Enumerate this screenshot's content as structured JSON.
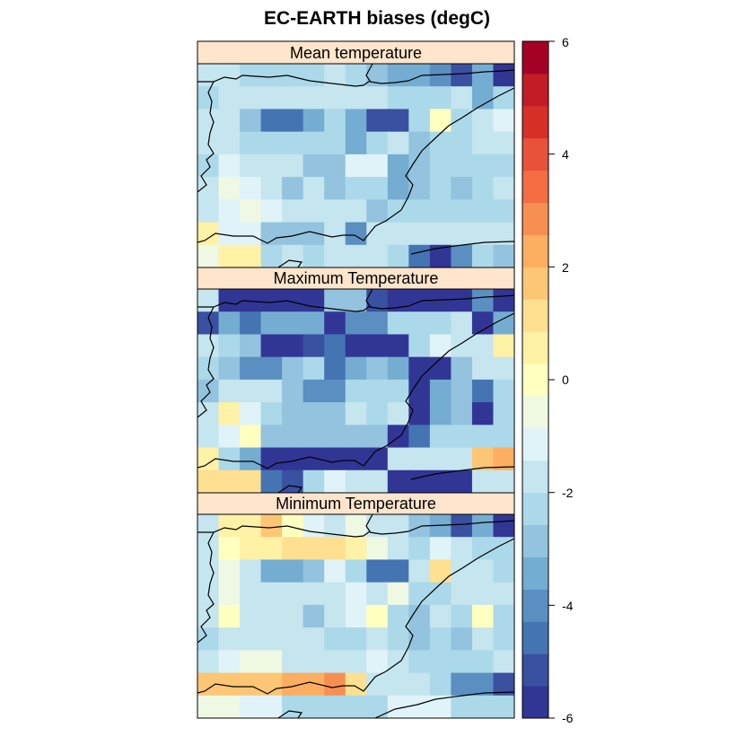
{
  "chart_data": {
    "type": "heatmap",
    "title": "EC-EARTH biases (degC)",
    "colorbar": {
      "range": [
        -6,
        6
      ],
      "step": 0.5,
      "ticks": [
        -6,
        -4,
        -2,
        0,
        2,
        4,
        6
      ],
      "tick_labels": [
        "-6",
        "-4",
        "-2",
        "0",
        "2",
        "4",
        "6"
      ],
      "colors": [
        "#313695",
        "#3A50A1",
        "#4574B3",
        "#5B8FC2",
        "#74ADD1",
        "#93C3DE",
        "#ABD9E9",
        "#C5E5EF",
        "#E0F3F8",
        "#EEF8E3",
        "#FFFFBF",
        "#FFF1A5",
        "#FEE090",
        "#FDC675",
        "#FDAE61",
        "#F88F52",
        "#F46D43",
        "#E8523A",
        "#D73027",
        "#C21C27",
        "#A50026"
      ]
    },
    "panels": [
      {
        "name": "Mean temperature",
        "values": [
          [
            -1.5,
            -2.0,
            -2.5,
            -2.5,
            -2.5,
            -2.5,
            -2.0,
            -2.5,
            -3.0,
            -3.5,
            -3.5,
            -4.0,
            -5.0,
            -3.5,
            -6.0
          ],
          [
            -2.5,
            -2.0,
            -2.0,
            -2.0,
            -2.0,
            -1.5,
            -1.5,
            -2.0,
            -2.0,
            -2.5,
            -2.5,
            -2.5,
            -1.5,
            -3.5,
            -2.5
          ],
          [
            -2.0,
            -2.0,
            -3.0,
            -4.5,
            -4.5,
            -3.5,
            -2.5,
            -3.5,
            -5.0,
            -5.0,
            -2.5,
            0.0,
            -2.5,
            -1.5,
            -1.0
          ],
          [
            -2.0,
            -2.0,
            -2.5,
            -2.5,
            -2.5,
            -2.5,
            -2.5,
            -3.5,
            -2.5,
            -2.0,
            -3.0,
            -2.5,
            -2.5,
            -2.0,
            -2.0
          ],
          [
            -2.5,
            -1.0,
            -1.5,
            -2.0,
            -1.5,
            -3.0,
            -3.0,
            -1.0,
            -1.0,
            -3.5,
            -3.0,
            -2.5,
            -2.5,
            -2.5,
            -2.5
          ],
          [
            -1.5,
            -0.5,
            -1.0,
            -2.0,
            -3.0,
            -2.0,
            -3.0,
            -2.5,
            -2.5,
            -3.5,
            -3.0,
            -2.5,
            -3.0,
            -2.5,
            -2.0
          ],
          [
            -1.5,
            -1.0,
            -0.5,
            -1.0,
            -2.0,
            -2.0,
            -2.0,
            -1.5,
            -3.0,
            -2.5,
            -2.5,
            -2.5,
            -2.5,
            -2.5,
            -2.5
          ],
          [
            0.5,
            -1.0,
            -1.0,
            -3.0,
            -3.0,
            -3.0,
            -2.0,
            -4.0,
            -2.0,
            -2.0,
            -2.0,
            -2.0,
            -2.0,
            -2.0,
            -1.5
          ],
          [
            -0.5,
            0.5,
            0.5,
            -2.5,
            -2.0,
            -2.5,
            -2.0,
            -2.0,
            -2.0,
            -2.5,
            -4.5,
            -5.5,
            -4.0,
            -2.5,
            -3.0
          ]
        ]
      },
      {
        "name": "Maximum Temperature",
        "values": [
          [
            -1.5,
            -6.0,
            -6.0,
            -6.0,
            -5.5,
            -5.5,
            -3.0,
            -3.0,
            -5.0,
            -5.5,
            -5.5,
            -5.5,
            -6.0,
            -4.0,
            -6.0
          ],
          [
            -5.0,
            -3.5,
            -4.5,
            -3.5,
            -3.5,
            -3.5,
            -5.5,
            -4.0,
            -4.0,
            -2.5,
            -2.5,
            -2.5,
            -2.0,
            -5.5,
            -3.5
          ],
          [
            -2.0,
            -2.5,
            -3.0,
            -6.0,
            -6.0,
            -5.0,
            -4.5,
            -6.0,
            -6.0,
            -6.0,
            -2.5,
            -1.0,
            -2.0,
            -2.0,
            0.5
          ],
          [
            -2.5,
            -3.0,
            -4.0,
            -4.0,
            -3.0,
            -2.5,
            -4.5,
            -3.5,
            -3.0,
            -3.5,
            -6.0,
            -5.5,
            -3.0,
            -2.0,
            -2.0
          ],
          [
            -3.0,
            -2.0,
            -2.0,
            -2.0,
            -3.0,
            -4.0,
            -4.0,
            -2.5,
            -2.5,
            -2.5,
            -6.0,
            -3.5,
            -3.0,
            -4.5,
            -2.5
          ],
          [
            -2.0,
            0.5,
            -1.0,
            -2.5,
            -3.0,
            -3.0,
            -3.0,
            -2.0,
            -2.5,
            -2.0,
            -6.0,
            -3.5,
            -3.0,
            -6.0,
            -2.5
          ],
          [
            -2.0,
            -1.0,
            0.0,
            -3.0,
            -3.0,
            -3.0,
            -3.0,
            -3.0,
            -3.0,
            -6.0,
            -4.5,
            -2.5,
            -2.5,
            -2.5,
            -2.5
          ],
          [
            0.5,
            -2.5,
            -3.5,
            -6.0,
            -6.0,
            -6.0,
            -6.0,
            -6.0,
            -6.0,
            -2.0,
            -2.0,
            -1.5,
            -2.0,
            1.5,
            2.0
          ],
          [
            1.0,
            1.0,
            1.0,
            -4.5,
            -5.0,
            -2.5,
            -1.0,
            -1.5,
            -2.0,
            -6.0,
            -6.0,
            -6.0,
            -6.0,
            -2.0,
            -2.0
          ]
        ]
      },
      {
        "name": "Minimum Temperature",
        "values": [
          [
            -2.0,
            0.5,
            0.5,
            1.5,
            0.0,
            -1.0,
            -2.0,
            -0.5,
            -2.0,
            -2.0,
            -3.0,
            -3.5,
            -5.0,
            -3.5,
            -6.0
          ],
          [
            -2.0,
            0.0,
            0.5,
            0.5,
            1.0,
            1.0,
            1.0,
            0.5,
            -0.5,
            -1.5,
            -2.5,
            -1.0,
            -1.5,
            -2.5,
            -2.5
          ],
          [
            -2.0,
            -0.5,
            -2.0,
            -3.5,
            -3.5,
            -3.0,
            -1.0,
            -2.5,
            -4.5,
            -4.5,
            -2.0,
            1.0,
            -2.0,
            -1.5,
            -2.5
          ],
          [
            -2.0,
            -0.5,
            -2.0,
            -2.0,
            -2.0,
            -2.0,
            -2.0,
            -1.0,
            -1.5,
            -0.5,
            -2.5,
            -2.5,
            -2.0,
            -2.0,
            -2.0
          ],
          [
            -2.0,
            0.0,
            -1.5,
            -1.5,
            -1.5,
            -3.0,
            -2.0,
            -1.0,
            0.0,
            -2.5,
            -3.0,
            -2.0,
            -2.5,
            0.0,
            -2.5
          ],
          [
            -2.5,
            -1.5,
            -1.5,
            -2.0,
            -2.0,
            -1.5,
            -2.5,
            -2.5,
            -1.5,
            -2.5,
            -3.0,
            -2.5,
            -3.0,
            -1.5,
            -2.5
          ],
          [
            -1.5,
            -1.0,
            -0.5,
            -0.5,
            -2.0,
            -1.5,
            -2.0,
            -1.5,
            -1.0,
            -2.0,
            -2.5,
            -2.5,
            -2.5,
            -2.5,
            -2.0
          ],
          [
            1.5,
            1.5,
            1.5,
            1.5,
            2.0,
            2.0,
            3.0,
            1.0,
            -2.0,
            -2.0,
            -2.0,
            -2.5,
            -4.0,
            -4.0,
            -5.0
          ],
          [
            -0.5,
            -0.5,
            -1.0,
            -1.0,
            -2.5,
            -2.5,
            -2.5,
            -2.5,
            -2.5,
            -1.0,
            -1.0,
            -1.0,
            -2.5,
            -2.5,
            -2.5
          ]
        ]
      }
    ]
  }
}
